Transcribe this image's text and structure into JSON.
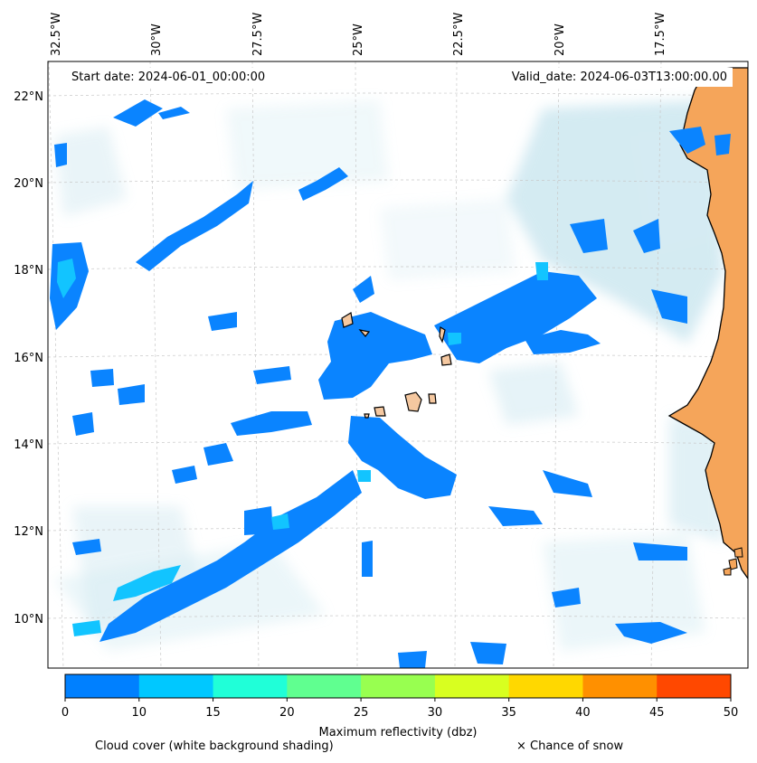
{
  "header": {
    "start_date": "Start date: 2024-06-01_00:00:00",
    "valid_date": "Valid_date: 2024-06-03T13:00:00.00"
  },
  "axes": {
    "lon_labels": [
      "32.5°W",
      "30°W",
      "27.5°W",
      "25°W",
      "22.5°W",
      "20°W",
      "17.5°W"
    ],
    "lat_labels": [
      "22°N",
      "20°N",
      "18°N",
      "16°N",
      "14°N",
      "12°N",
      "10°N"
    ],
    "grid": true
  },
  "colorbar": {
    "title": "Maximum reflectivity (dbz)",
    "ticks": [
      "0",
      "10",
      "15",
      "20",
      "25",
      "30",
      "35",
      "40",
      "45",
      "50"
    ],
    "colors": [
      "#0080ff",
      "#00c8ff",
      "#20ffd8",
      "#60ff90",
      "#98ff50",
      "#d8ff20",
      "#ffd800",
      "#ff9000",
      "#ff4800"
    ]
  },
  "legend": {
    "cloud_cover": "Cloud cover (white background shading)",
    "snow": "× Chance of snow"
  },
  "colors": {
    "land": "#f5a55a",
    "island": "#f5c8a0",
    "cloud": "#c6e4ee",
    "reflectivity_low": "#0a84ff",
    "reflectivity_mid": "#12c4ff"
  }
}
